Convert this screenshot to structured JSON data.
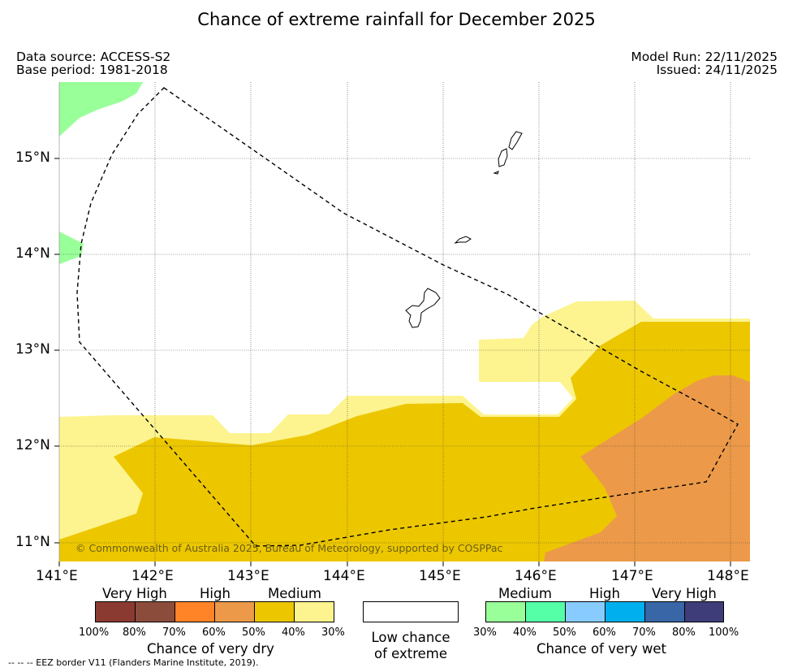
{
  "title": "Chance of extreme rainfall for December 2025",
  "header": {
    "data_source": "Data source: ACCESS-S2",
    "base_period": "Base period: 1981-2018",
    "model_run": "Model Run: 22/11/2025",
    "issued": "Issued: 24/11/2025"
  },
  "map": {
    "lat_ticks": [
      "15°N",
      "14°N",
      "13°N",
      "12°N",
      "11°N"
    ],
    "lon_ticks": [
      "141°E",
      "142°E",
      "143°E",
      "144°E",
      "145°E",
      "146°E",
      "147°E",
      "148°E"
    ],
    "copyright": "© Commonwealth of Australia 2025, Bureau of Meteorology, supported by COSPPac",
    "colors": {
      "dry_medium_low": "#fdf48f",
      "dry_medium": "#ecc700",
      "dry_high": "#ec9a49",
      "wet_medium": "#99ff99"
    }
  },
  "legend": {
    "dry": {
      "groups": [
        "Very High",
        "High",
        "Medium"
      ],
      "ticks": [
        "100%",
        "80%",
        "70%",
        "60%",
        "50%",
        "40%",
        "30%"
      ],
      "caption": "Chance of very dry",
      "colors": [
        "#8b3a32",
        "#8c4c3c",
        "#ff8327",
        "#ec9a49",
        "#ecc700",
        "#fdf48f"
      ]
    },
    "neutral": {
      "caption_line1": "Low chance",
      "caption_line2": "of extreme",
      "color": "#ffffff"
    },
    "wet": {
      "groups": [
        "Medium",
        "High",
        "Very High"
      ],
      "ticks": [
        "30%",
        "40%",
        "50%",
        "60%",
        "70%",
        "80%",
        "100%"
      ],
      "caption": "Chance of very wet",
      "colors": [
        "#99ff99",
        "#55ffa8",
        "#88ccff",
        "#00b0ee",
        "#3966a6",
        "#3e3d7a"
      ]
    }
  },
  "footnote": "-- -- -- EEZ border V11 (Flanders Marine Institute, 2019)."
}
